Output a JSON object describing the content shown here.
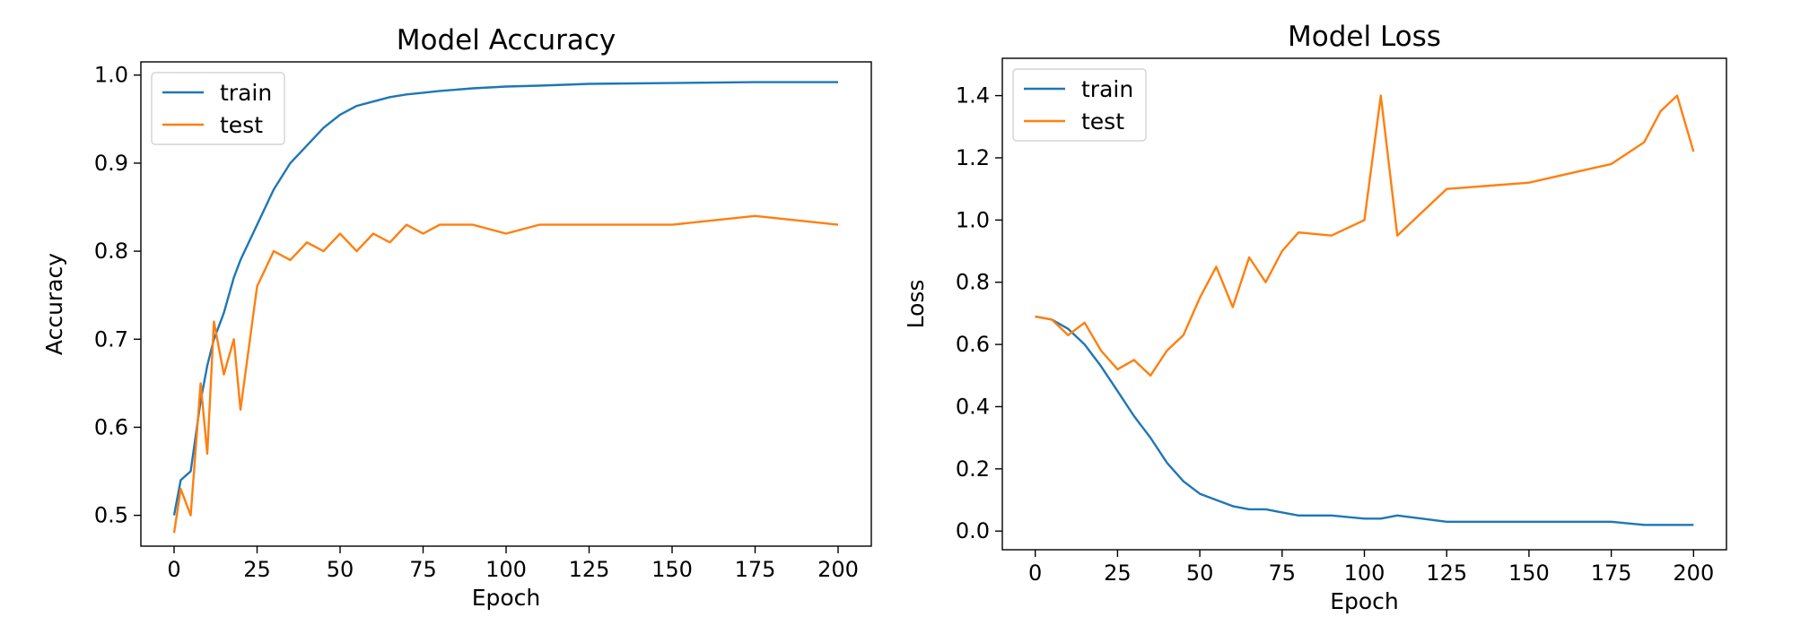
{
  "chart_data": [
    {
      "type": "line",
      "title": "Model Accuracy",
      "xlabel": "Epoch",
      "ylabel": "Accuracy",
      "xlim": [
        -10,
        210
      ],
      "ylim": [
        0.465,
        1.015
      ],
      "x_ticks": [
        "0",
        "25",
        "50",
        "75",
        "100",
        "125",
        "150",
        "175",
        "200"
      ],
      "y_ticks": [
        "0.5",
        "0.6",
        "0.7",
        "0.8",
        "0.9",
        "1.0"
      ],
      "legend_position": "top-left",
      "grid": false,
      "x_points": [
        0,
        2,
        5,
        8,
        10,
        12,
        15,
        18,
        20,
        25,
        30,
        35,
        40,
        45,
        50,
        55,
        60,
        65,
        70,
        75,
        80,
        90,
        100,
        110,
        125,
        150,
        175,
        200
      ],
      "series": [
        {
          "name": "train",
          "color": "#1f77b4",
          "values": [
            0.5,
            0.54,
            0.55,
            0.63,
            0.67,
            0.7,
            0.73,
            0.77,
            0.79,
            0.83,
            0.87,
            0.9,
            0.92,
            0.94,
            0.955,
            0.965,
            0.97,
            0.975,
            0.978,
            0.98,
            0.982,
            0.985,
            0.987,
            0.988,
            0.99,
            0.991,
            0.992,
            0.992
          ]
        },
        {
          "name": "test",
          "color": "#ff7f0e",
          "values": [
            0.48,
            0.53,
            0.5,
            0.65,
            0.57,
            0.72,
            0.66,
            0.7,
            0.62,
            0.76,
            0.8,
            0.79,
            0.81,
            0.8,
            0.82,
            0.8,
            0.82,
            0.81,
            0.83,
            0.82,
            0.83,
            0.83,
            0.82,
            0.83,
            0.83,
            0.83,
            0.84,
            0.83
          ]
        }
      ]
    },
    {
      "type": "line",
      "title": "Model Loss",
      "xlabel": "Epoch",
      "ylabel": "Loss",
      "xlim": [
        -10,
        210
      ],
      "ylim": [
        -0.06,
        1.52
      ],
      "x_ticks": [
        "0",
        "25",
        "50",
        "75",
        "100",
        "125",
        "150",
        "175",
        "200"
      ],
      "y_ticks": [
        "0.0",
        "0.2",
        "0.4",
        "0.6",
        "0.8",
        "1.0",
        "1.2",
        "1.4"
      ],
      "legend_position": "top-left",
      "grid": false,
      "x_points": [
        0,
        5,
        10,
        15,
        20,
        25,
        30,
        35,
        40,
        45,
        50,
        55,
        60,
        65,
        70,
        75,
        80,
        90,
        100,
        105,
        110,
        125,
        150,
        175,
        185,
        190,
        195,
        200
      ],
      "series": [
        {
          "name": "train",
          "color": "#1f77b4",
          "values": [
            0.69,
            0.68,
            0.65,
            0.6,
            0.53,
            0.45,
            0.37,
            0.3,
            0.22,
            0.16,
            0.12,
            0.1,
            0.08,
            0.07,
            0.07,
            0.06,
            0.05,
            0.05,
            0.04,
            0.04,
            0.05,
            0.03,
            0.03,
            0.03,
            0.02,
            0.02,
            0.02,
            0.02
          ]
        },
        {
          "name": "test",
          "color": "#ff7f0e",
          "values": [
            0.69,
            0.68,
            0.63,
            0.67,
            0.58,
            0.52,
            0.55,
            0.5,
            0.58,
            0.63,
            0.75,
            0.85,
            0.72,
            0.88,
            0.8,
            0.9,
            0.96,
            0.95,
            1.0,
            1.4,
            0.95,
            1.1,
            1.12,
            1.18,
            1.25,
            1.35,
            1.4,
            1.22
          ]
        }
      ]
    }
  ]
}
